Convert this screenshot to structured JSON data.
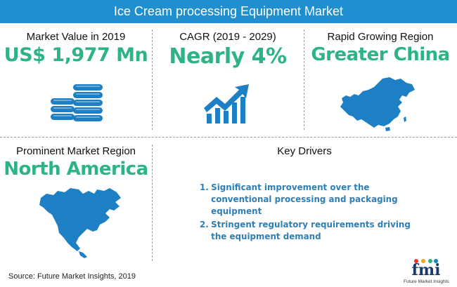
{
  "title": "Ice Cream processing Equipment Market",
  "market_value": {
    "label": "Market Value in 2019",
    "value": "US$ 1,977 Mn"
  },
  "cagr": {
    "label": "CAGR (2019 - 2029)",
    "value": "Nearly 4%"
  },
  "growing_region": {
    "label": "Rapid Growing Region",
    "value": "Greater China"
  },
  "prominent_region": {
    "label": "Prominent Market Region",
    "value": "North America"
  },
  "key_drivers": {
    "label": "Key Drivers",
    "items": [
      {
        "num": "1.",
        "text": "Significant improvement over the conventional processing and packaging equipment"
      },
      {
        "num": "2.",
        "text": "Stringent regulatory requirements driving the equipment demand"
      }
    ]
  },
  "source": "Source: Future Market Insights, 2019",
  "logo": {
    "mark": "fmi",
    "subtitle": "Future Market Insights"
  },
  "colors": {
    "title_bar": "#1f8fd0",
    "value_green": "#2db384",
    "icon_blue": "#1d7fc4",
    "driver_blue": "#2e7fb6"
  },
  "icons": [
    "coin-stack-icon",
    "growth-chart-icon",
    "china-map-icon",
    "north-america-map-icon"
  ]
}
